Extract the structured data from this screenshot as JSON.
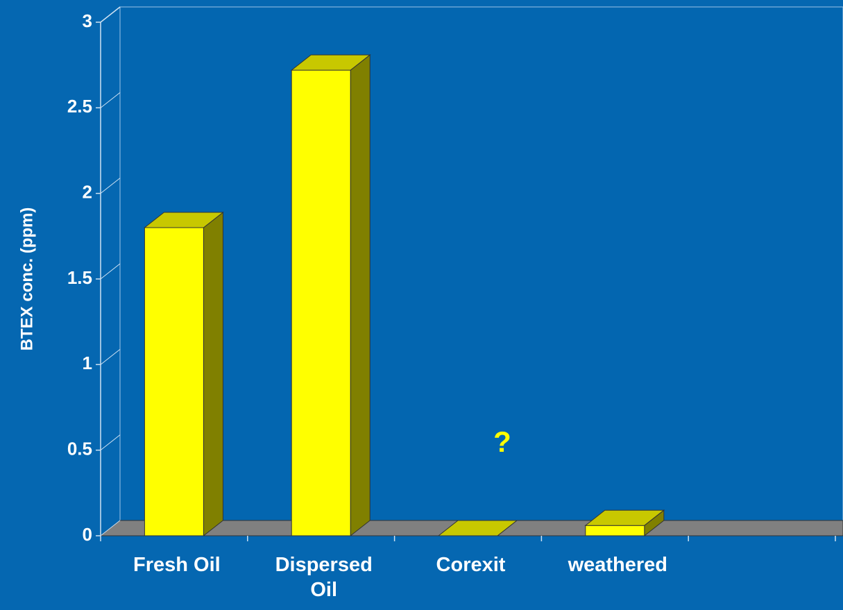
{
  "chart_data": {
    "type": "bar3d",
    "y_label": "BTEX conc. (ppm)",
    "categories": [
      "Fresh Oil",
      "Dispersed Oil",
      "Corexit",
      "weathered",
      null
    ],
    "values": [
      1.8,
      2.72,
      0,
      0.06,
      null
    ],
    "color": "#ffff00",
    "ylim": [
      0,
      3
    ],
    "yticks": [
      0,
      0.5,
      1,
      1.5,
      2,
      2.5,
      3
    ],
    "annotation": "?"
  }
}
